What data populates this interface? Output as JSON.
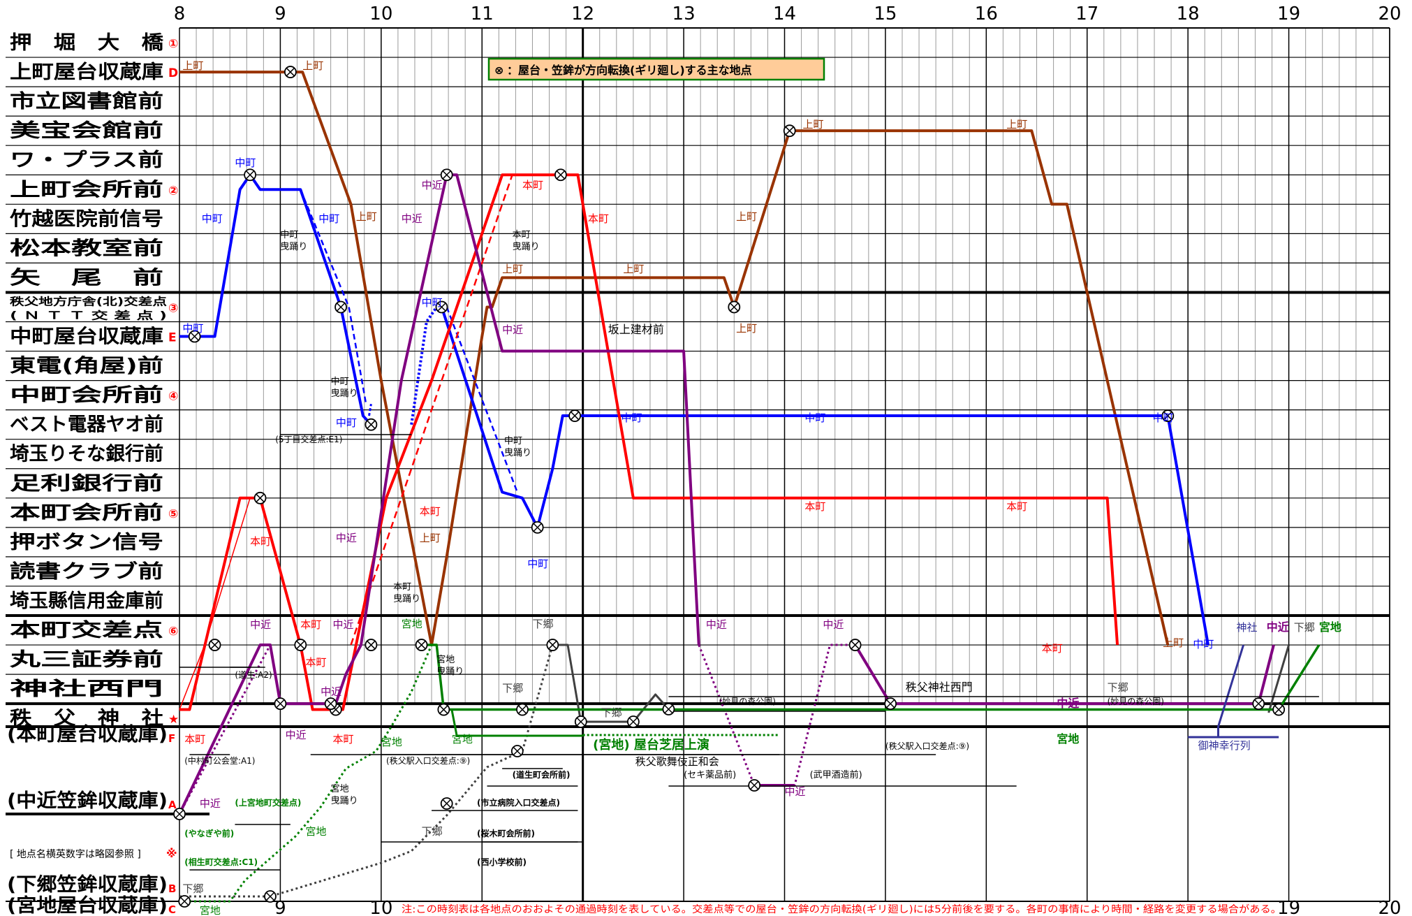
{
  "hours_top": [
    "8",
    "9",
    "10",
    "11",
    "12",
    "13",
    "14",
    "15",
    "16",
    "17",
    "18",
    "19",
    "20"
  ],
  "hours_bottom": [
    "9",
    "10",
    "19",
    "20"
  ],
  "legend": {
    "symbol": "⊗",
    "text": "：屋台・笠鉾が方向転換(ギリ廻し)する主な地点"
  },
  "footnote": "注:この時刻表は各地点のおおよその通過時刻を表している。交差点等での屋台・笠鉾の方向転換(ギリ廻し)には5分前後を要する。各町の事情により時間・経路を変更する場合がある。",
  "side_note": "[ 地点名横英数字は略図参照 ]",
  "side_note_mark": "※",
  "rows": [
    {
      "label": "押　堀　大　橋",
      "mark": "①",
      "bold_line": false
    },
    {
      "label": "上町屋台収蔵庫",
      "mark": "D",
      "bold_line": false
    },
    {
      "label": "市立図書館前",
      "mark": "",
      "bold_line": false
    },
    {
      "label": "美宝会館前",
      "mark": "",
      "bold_line": false
    },
    {
      "label": "ワ・プラス前",
      "mark": "",
      "bold_line": false
    },
    {
      "label": "上町会所前",
      "mark": "②",
      "bold_line": false
    },
    {
      "label": "竹越医院前信号",
      "mark": "",
      "bold_line": false
    },
    {
      "label": "松本教室前",
      "mark": "",
      "bold_line": false
    },
    {
      "label": "矢　尾　前",
      "mark": "",
      "bold_line": false
    },
    {
      "label": "秩父地方庁舎(北)交差点\n( Ｎ Ｔ Ｔ 交 差 点 )",
      "mark": "③",
      "bold_line": true
    },
    {
      "label": "中町屋台収蔵庫",
      "mark": "E",
      "bold_line": false
    },
    {
      "label": "東電(角屋)前",
      "mark": "",
      "bold_line": false
    },
    {
      "label": "中町会所前",
      "mark": "④",
      "bold_line": false
    },
    {
      "label": "ベスト電器ヤオ前",
      "mark": "",
      "bold_line": false
    },
    {
      "label": "埼玉りそな銀行前",
      "mark": "",
      "bold_line": false
    },
    {
      "label": "足利銀行前",
      "mark": "",
      "bold_line": false
    },
    {
      "label": "本町会所前",
      "mark": "⑤",
      "bold_line": false
    },
    {
      "label": "押ボタン信号",
      "mark": "",
      "bold_line": false
    },
    {
      "label": "読書クラブ前",
      "mark": "",
      "bold_line": false
    },
    {
      "label": "埼玉縣信用金庫前",
      "mark": "",
      "bold_line": false
    },
    {
      "label": "本町交差点",
      "mark": "⑥",
      "bold_line": true
    },
    {
      "label": "丸三証券前",
      "mark": "",
      "bold_line": false
    },
    {
      "label": "神社西門",
      "mark": "",
      "bold_line": false
    },
    {
      "label": "秩　父　神　社",
      "mark": "★",
      "bold_line": true
    }
  ],
  "lower_rows": [
    {
      "label": "(本町屋台収蔵庫)",
      "mark": "F"
    },
    {
      "label": "(中近笠鉾収蔵庫)",
      "mark": "A"
    },
    {
      "label": "(下郷笠鉾収蔵庫)",
      "mark": "B"
    },
    {
      "label": "(宮地屋台収蔵庫)",
      "mark": "C"
    }
  ],
  "colors": {
    "kamimachi": "#993300",
    "nakamachi": "#0000ff",
    "honmachi": "#ff0000",
    "nakachika": "#800080",
    "shimogo": "#404040",
    "miyaji": "#008000",
    "mikoshi": "#333399",
    "mark_red": "#ff0000",
    "legend_bg": "#ffcc99",
    "legend_border": "#008000"
  },
  "series_labels": {
    "kamimachi": "上町",
    "nakamachi": "中町",
    "honmachi": "本町",
    "nakachika": "中近",
    "shimogo": "下郷",
    "miyaji": "宮地",
    "jinja": "神社"
  },
  "annotations": {
    "nakamachi_dance": "中町\n曳踊り",
    "honmachi_dance": "本町\n曳踊り",
    "miyaji_dance": "宮地\n曳踊り",
    "sakagami": "坂上建材前",
    "e1": "(5丁目交差点:E1)",
    "a2": "(道生:A2)",
    "a1": "(中村町公会堂:A1)",
    "station9": "(秩父駅入口交差点:⑨)",
    "station9b": "(秩父駅入口交差点:⑨)",
    "kamimiyaji": "(上宮地町交差点)",
    "yanagiya": "(やなぎや前)",
    "aioi": "(相生町交差点:C1)",
    "michio": "(道生町会所前)",
    "hospital": "(市立病院入口交差点)",
    "sakuragi": "(桜木町会所前)",
    "nishi": "(西小学校前)",
    "shibai": "(宮地) 屋台芝居上演",
    "kabuki": "秩父歌舞伎正和会",
    "seki": "(セキ薬品前)",
    "takeko": "(武甲酒造前)",
    "myoken1": "(妙見の森公園)",
    "myoken2": "(妙見の森公園)",
    "nishimon": "秩父神社西門",
    "procession": "御神幸行列"
  }
}
